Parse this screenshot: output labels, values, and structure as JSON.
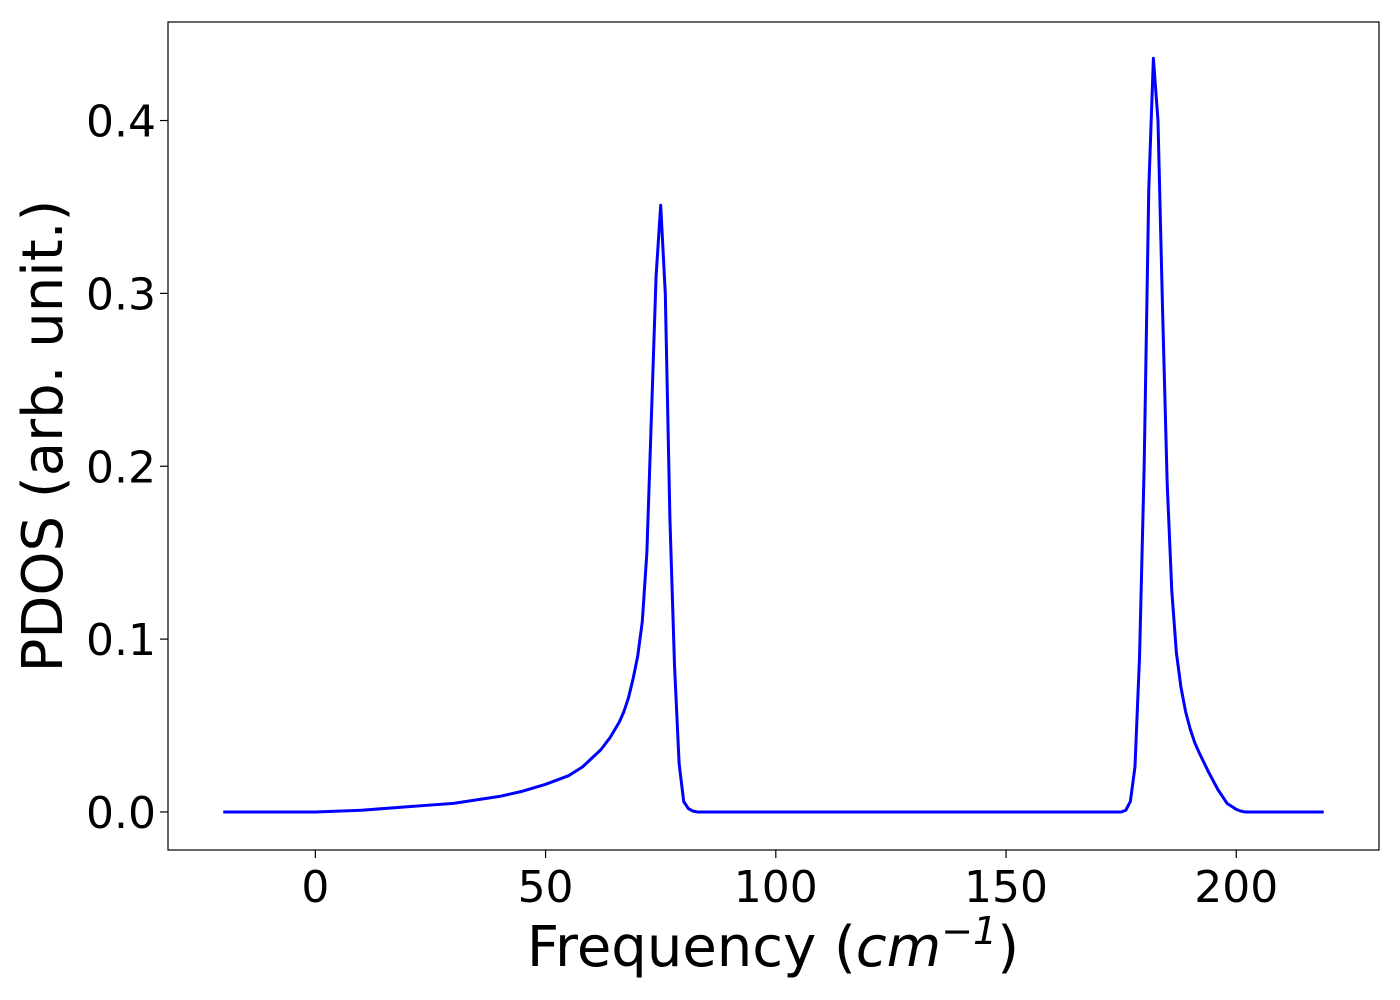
{
  "chart_data": {
    "type": "line",
    "title": "",
    "xlabel": "Frequency",
    "xlabel_unit": "cm",
    "xlabel_unit_exponent": "−1",
    "ylabel": "PDOS (arb. unit.)",
    "xlim": [
      -32,
      231
    ],
    "ylim": [
      -0.022,
      0.457
    ],
    "x_ticks": [
      0,
      50,
      100,
      150,
      200
    ],
    "y_ticks": [
      0.0,
      0.1,
      0.2,
      0.3,
      0.4
    ],
    "x_tick_labels": [
      "0",
      "50",
      "100",
      "150",
      "200"
    ],
    "y_tick_labels": [
      "0.0",
      "0.1",
      "0.2",
      "0.3",
      "0.4"
    ],
    "grid": false,
    "legend": false,
    "series": [
      {
        "color": "#0000ff",
        "x": [
          -20,
          0,
          5,
          10,
          15,
          20,
          25,
          30,
          35,
          40,
          45,
          50,
          55,
          58,
          60,
          62,
          64,
          66,
          67,
          68,
          69,
          70,
          71,
          72,
          73,
          74,
          75,
          76,
          77,
          78,
          79,
          80,
          81,
          82,
          83,
          85,
          90,
          100,
          150,
          175,
          176,
          177,
          178,
          179,
          180,
          181,
          182,
          183,
          184,
          185,
          186,
          187,
          188,
          189,
          190,
          191,
          192,
          194,
          196,
          198,
          200,
          201,
          202,
          203,
          205,
          210,
          219
        ],
        "y": [
          0.0,
          0.0,
          0.0005,
          0.001,
          0.002,
          0.003,
          0.004,
          0.005,
          0.007,
          0.009,
          0.012,
          0.016,
          0.021,
          0.026,
          0.031,
          0.036,
          0.043,
          0.052,
          0.058,
          0.066,
          0.077,
          0.09,
          0.11,
          0.15,
          0.23,
          0.31,
          0.351,
          0.3,
          0.17,
          0.085,
          0.028,
          0.006,
          0.002,
          0.0005,
          0.0,
          0.0,
          0.0,
          0.0,
          0.0,
          0.0,
          0.001,
          0.006,
          0.026,
          0.09,
          0.2,
          0.36,
          0.436,
          0.4,
          0.29,
          0.19,
          0.128,
          0.092,
          0.072,
          0.058,
          0.048,
          0.04,
          0.034,
          0.023,
          0.013,
          0.005,
          0.0015,
          0.0005,
          0.0,
          0.0,
          0.0,
          0.0,
          0.0
        ]
      }
    ]
  }
}
